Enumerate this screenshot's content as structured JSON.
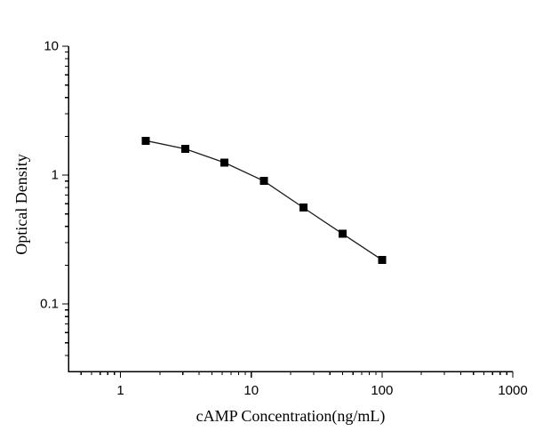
{
  "chart_data": {
    "type": "line",
    "title": "",
    "xlabel": "cAMP Concentration(ng/mL)",
    "ylabel": "Optical Density",
    "x": [
      1.5625,
      3.125,
      6.25,
      12.5,
      25,
      50,
      100
    ],
    "y": [
      1.85,
      1.6,
      1.25,
      0.9,
      0.56,
      0.35,
      0.22
    ],
    "xscale": "log",
    "yscale": "log",
    "xlim": [
      0.4,
      1000
    ],
    "ylim": [
      0.03,
      10
    ],
    "xticks": {
      "values": [
        1,
        10,
        100,
        1000
      ],
      "labels": [
        "1",
        "10",
        "100",
        "1000"
      ]
    },
    "yticks": {
      "values": [
        0.1,
        1,
        10
      ],
      "labels": [
        "0.1",
        "1",
        "10"
      ]
    },
    "grid": false,
    "legend": "none",
    "marker": "filled-square",
    "colors": {
      "axis": "#000000",
      "line": "#1c1c1c",
      "marker": "#000000",
      "text": "#000000",
      "background": "#ffffff"
    }
  }
}
